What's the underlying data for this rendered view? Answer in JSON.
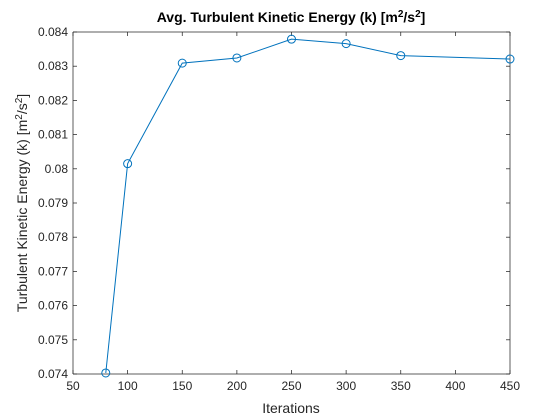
{
  "chart_data": {
    "type": "line",
    "title": "Avg. Turbulent Kinetic Energy (k) [m²/s²]",
    "xlabel": "Iterations",
    "ylabel": "Turbulent Kinetic Energy (k) [m²/s²]",
    "xlim": [
      50,
      450
    ],
    "ylim": [
      0.074,
      0.084
    ],
    "xticks": [
      50,
      100,
      150,
      200,
      250,
      300,
      350,
      400,
      450
    ],
    "yticks": [
      0.074,
      0.075,
      0.076,
      0.077,
      0.078,
      0.079,
      0.08,
      0.081,
      0.082,
      0.083,
      0.084
    ],
    "xtick_labels": [
      "50",
      "100",
      "150",
      "200",
      "250",
      "300",
      "350",
      "400",
      "450"
    ],
    "ytick_labels": [
      "0.074",
      "0.075",
      "0.076",
      "0.077",
      "0.078",
      "0.079",
      "0.08",
      "0.081",
      "0.082",
      "0.083",
      "0.084"
    ],
    "grid": false,
    "series": [
      {
        "x": [
          80,
          100,
          150,
          200,
          250,
          300,
          350,
          450
        ],
        "y": [
          0.07403,
          0.08015,
          0.08309,
          0.08324,
          0.08379,
          0.08366,
          0.08331,
          0.08321
        ],
        "color": "#0072BD",
        "marker": "circle"
      }
    ]
  },
  "title_parts": {
    "main": "Avg. Turbulent Kinetic Energy (k) [m",
    "sup1": "2",
    "mid": "/s",
    "sup2": "2",
    "end": "]"
  },
  "ylabel_parts": {
    "main": "Turbulent Kinetic Energy (k) [m",
    "sup1": "2",
    "mid": "/s",
    "sup2": "2",
    "end": "]"
  }
}
